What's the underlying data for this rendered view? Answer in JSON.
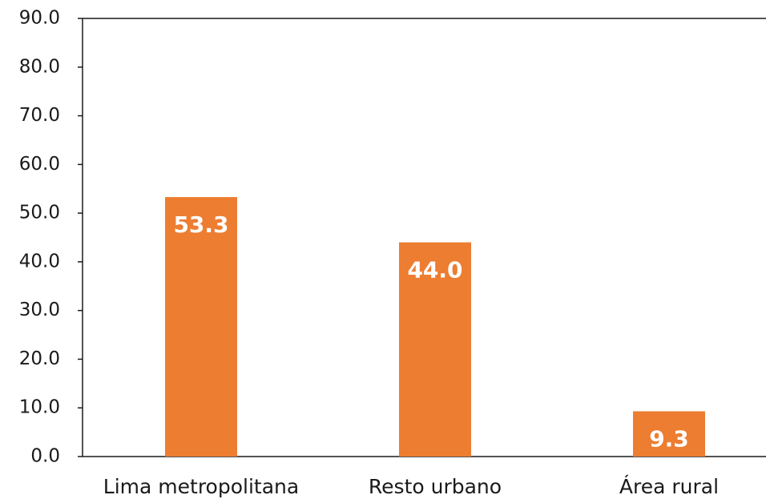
{
  "chart_data": {
    "type": "bar",
    "categories": [
      "Lima metropolitana",
      "Resto urbano",
      "Área rural"
    ],
    "values": [
      53.3,
      44.0,
      9.3
    ],
    "value_labels": [
      "53.3",
      "44.0",
      "9.3"
    ],
    "color": "#ed7d31",
    "ylim": [
      0,
      90
    ],
    "yticks": [
      {
        "value": 0,
        "label": "0.0"
      },
      {
        "value": 10,
        "label": "10.0"
      },
      {
        "value": 20,
        "label": "20.0"
      },
      {
        "value": 30,
        "label": "30.0"
      },
      {
        "value": 40,
        "label": "40.0"
      },
      {
        "value": 50,
        "label": "50.0"
      },
      {
        "value": 60,
        "label": "60.0"
      },
      {
        "value": 70,
        "label": "70.0"
      },
      {
        "value": 80,
        "label": "80.0"
      },
      {
        "value": 90,
        "label": "90.0"
      }
    ]
  }
}
